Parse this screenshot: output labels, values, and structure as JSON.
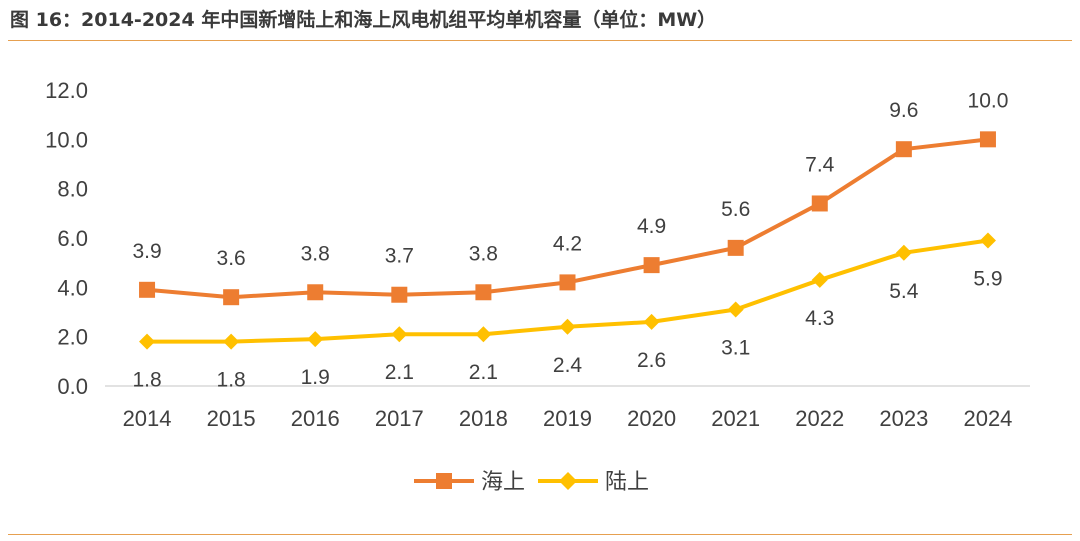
{
  "caption": "图 16：2014-2024 年中国新增陆上和海上风电机组平均单机容量（单位：MW）",
  "chart_data": {
    "type": "line",
    "title": "图 16：2014-2024 年中国新增陆上和海上风电机组平均单机容量（单位：MW）",
    "categories": [
      "2014",
      "2015",
      "2016",
      "2017",
      "2018",
      "2019",
      "2020",
      "2021",
      "2022",
      "2023",
      "2024"
    ],
    "y_ticks": [
      "0.0",
      "2.0",
      "4.0",
      "6.0",
      "8.0",
      "10.0",
      "12.0"
    ],
    "ylim": [
      0,
      12
    ],
    "grid": false,
    "legend_position": "bottom",
    "series": [
      {
        "name": "海上",
        "color": "#ed7d31",
        "marker": "square",
        "values": [
          3.9,
          3.6,
          3.8,
          3.7,
          3.8,
          4.2,
          4.9,
          5.6,
          7.4,
          9.6,
          10.0
        ],
        "labels": [
          "3.9",
          "3.6",
          "3.8",
          "3.7",
          "3.8",
          "4.2",
          "4.9",
          "5.6",
          "7.4",
          "9.6",
          "10.0"
        ]
      },
      {
        "name": "陆上",
        "color": "#ffc000",
        "marker": "diamond",
        "values": [
          1.8,
          1.8,
          1.9,
          2.1,
          2.1,
          2.4,
          2.6,
          3.1,
          4.3,
          5.4,
          5.9
        ],
        "labels": [
          "1.8",
          "1.8",
          "1.9",
          "2.1",
          "2.1",
          "2.4",
          "2.6",
          "3.1",
          "4.3",
          "5.4",
          "5.9"
        ]
      }
    ]
  }
}
